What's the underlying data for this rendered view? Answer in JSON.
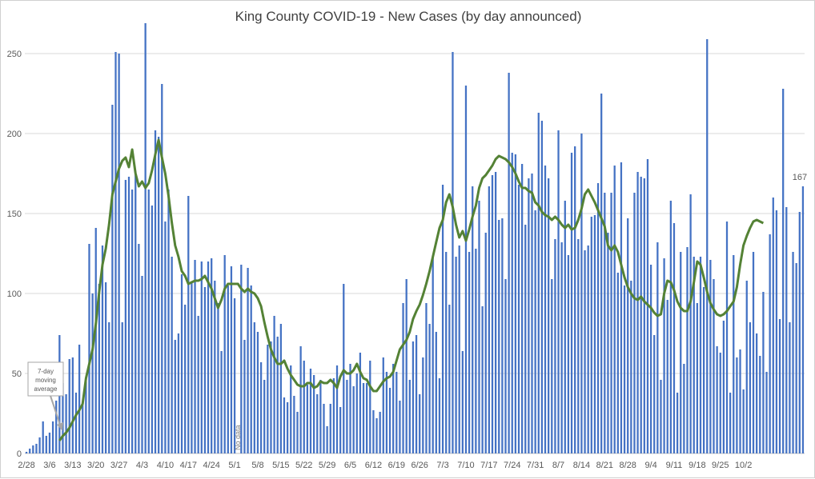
{
  "chart_data": {
    "type": "bar",
    "title": "King County COVID-19 - New Cases (by day announced)",
    "x_tick_labels": [
      "2/28",
      "3/6",
      "3/13",
      "3/20",
      "3/27",
      "4/3",
      "4/10",
      "4/17",
      "4/24",
      "5/1",
      "5/8",
      "5/15",
      "5/22",
      "5/29",
      "6/5",
      "6/12",
      "6/19",
      "6/26",
      "7/3",
      "7/10",
      "7/17",
      "7/24",
      "7/31",
      "8/7",
      "8/14",
      "8/21",
      "8/28",
      "9/4",
      "9/11",
      "9/18",
      "9/25",
      "10/2"
    ],
    "y_ticks": [
      0,
      50,
      100,
      150,
      200,
      250
    ],
    "ylim": [
      0,
      270
    ],
    "grid": true,
    "series": [
      {
        "type": "bar",
        "color": "#4472C4",
        "values": [
          1,
          3,
          5,
          6,
          10,
          20,
          11,
          13,
          20,
          33,
          74,
          44,
          37,
          59,
          60,
          38,
          68,
          31,
          45,
          131,
          100,
          141,
          106,
          130,
          107,
          82,
          218,
          251,
          250,
          82,
          171,
          173,
          165,
          175,
          131,
          111,
          269,
          165,
          155,
          202,
          198,
          231,
          145,
          165,
          123,
          71,
          75,
          112,
          93,
          161,
          107,
          121,
          86,
          120,
          104,
          120,
          122,
          108,
          94,
          64,
          124,
          105,
          117,
          97,
          0,
          118,
          71,
          116,
          105,
          82,
          76,
          57,
          46,
          68,
          70,
          86,
          73,
          81,
          35,
          32,
          55,
          36,
          26,
          67,
          58,
          43,
          53,
          49,
          37,
          46,
          31,
          17,
          31,
          47,
          55,
          29,
          106,
          46,
          56,
          42,
          50,
          63,
          44,
          44,
          58,
          27,
          22,
          26,
          60,
          51,
          41,
          56,
          51,
          33,
          94,
          109,
          46,
          70,
          74,
          37,
          60,
          94,
          81,
          124,
          76,
          47,
          168,
          126,
          93,
          251,
          123,
          130,
          64,
          230,
          126,
          167,
          128,
          158,
          92,
          138,
          167,
          174,
          176,
          146,
          147,
          109,
          238,
          188,
          187,
          168,
          181,
          143,
          172,
          175,
          152,
          213,
          208,
          180,
          172,
          109,
          134,
          202,
          132,
          158,
          124,
          188,
          192,
          134,
          200,
          127,
          130,
          148,
          149,
          169,
          225,
          163,
          138,
          163,
          180,
          113,
          182,
          105,
          147,
          108,
          163,
          176,
          173,
          172,
          184,
          118,
          74,
          132,
          46,
          122,
          96,
          158,
          144,
          38,
          126,
          56,
          129,
          162,
          123,
          94,
          123,
          104,
          259,
          121,
          109,
          67,
          63,
          83,
          145,
          38,
          124,
          60,
          65,
          40,
          108,
          82,
          126,
          75,
          61,
          101,
          51,
          137,
          160,
          152,
          84,
          228,
          154,
          82,
          126,
          119,
          151,
          167
        ]
      },
      {
        "type": "line",
        "color": "#548235",
        "values": [
          null,
          null,
          null,
          null,
          null,
          null,
          null,
          null,
          null,
          null,
          8,
          11,
          13,
          16,
          20,
          24,
          27,
          31,
          47,
          56,
          65,
          81,
          101,
          118,
          128,
          143,
          162,
          170,
          178,
          183,
          185,
          179,
          190,
          175,
          167,
          170,
          166,
          169,
          177,
          187,
          196,
          185,
          175,
          161,
          144,
          130,
          123,
          114,
          111,
          106,
          107,
          108,
          108,
          109,
          111,
          107,
          103,
          97,
          91,
          96,
          103,
          106,
          106,
          106,
          106,
          103,
          101,
          103,
          101,
          100,
          97,
          92,
          82,
          73,
          65,
          60,
          56,
          56,
          58,
          53,
          49,
          46,
          43,
          42,
          42,
          44,
          44,
          41,
          42,
          45,
          44,
          44,
          46,
          44,
          41,
          48,
          52,
          50,
          50,
          52,
          56,
          51,
          47,
          46,
          42,
          39,
          39,
          42,
          45,
          47,
          48,
          51,
          58,
          65,
          68,
          71,
          76,
          84,
          89,
          93,
          99,
          106,
          114,
          123,
          132,
          141,
          146,
          157,
          162,
          154,
          143,
          135,
          139,
          133,
          140,
          148,
          155,
          166,
          172,
          174,
          177,
          180,
          184,
          186,
          185,
          184,
          182,
          179,
          175,
          170,
          166,
          166,
          164,
          163,
          157,
          155,
          151,
          149,
          148,
          146,
          148,
          146,
          143,
          141,
          143,
          140,
          141,
          146,
          153,
          162,
          165,
          161,
          157,
          152,
          147,
          142,
          130,
          127,
          130,
          126,
          118,
          110,
          104,
          100,
          97,
          96,
          98,
          95,
          93,
          91,
          88,
          86,
          87,
          100,
          108,
          107,
          102,
          95,
          91,
          89,
          89,
          95,
          107,
          120,
          118,
          110,
          101,
          94,
          90,
          87,
          86,
          87,
          89,
          92,
          95,
          104,
          118,
          130,
          136,
          141,
          145,
          146,
          145,
          144
        ]
      }
    ],
    "annotations": {
      "last_value_label": "167",
      "no_data_label": "No data",
      "moving_average_callout": [
        "7-day",
        "moving",
        "average"
      ]
    }
  }
}
